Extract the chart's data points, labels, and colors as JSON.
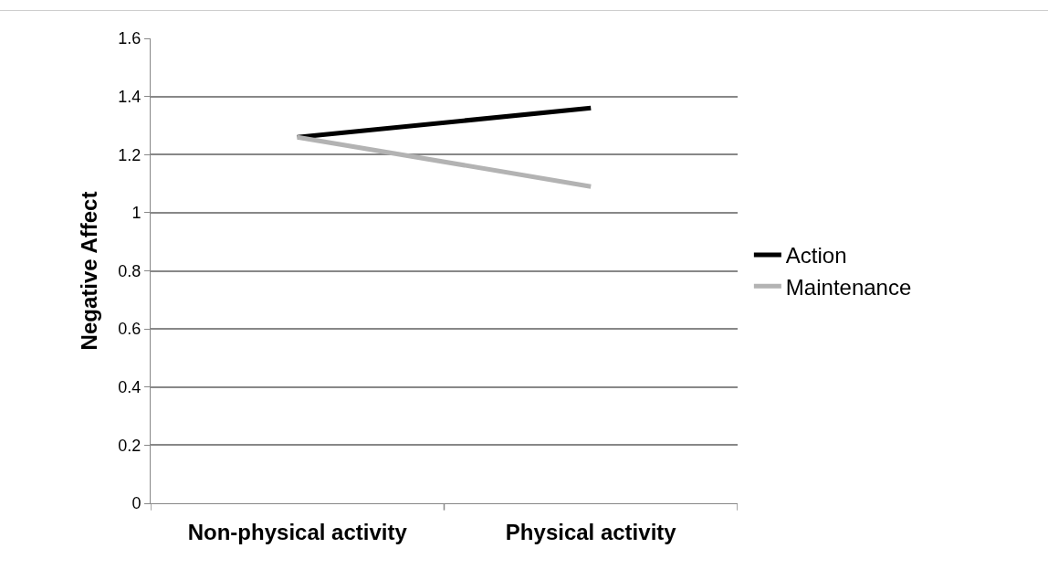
{
  "chart_data": {
    "type": "line",
    "ylabel": "Negative Affect",
    "categories": [
      "Non-physical activity",
      "Physical activity"
    ],
    "series": [
      {
        "name": "Action",
        "color": "#000000",
        "values": [
          1.26,
          1.36
        ]
      },
      {
        "name": "Maintenance",
        "color": "#b3b3b3",
        "values": [
          1.26,
          1.09
        ]
      }
    ],
    "ylim": [
      0,
      1.6
    ],
    "yticks": [
      0,
      0.2,
      0.4,
      0.6,
      0.8,
      1,
      1.2,
      1.4,
      1.6
    ],
    "grid": "y",
    "legend": "right",
    "marker": "none",
    "line_style": "solid"
  }
}
